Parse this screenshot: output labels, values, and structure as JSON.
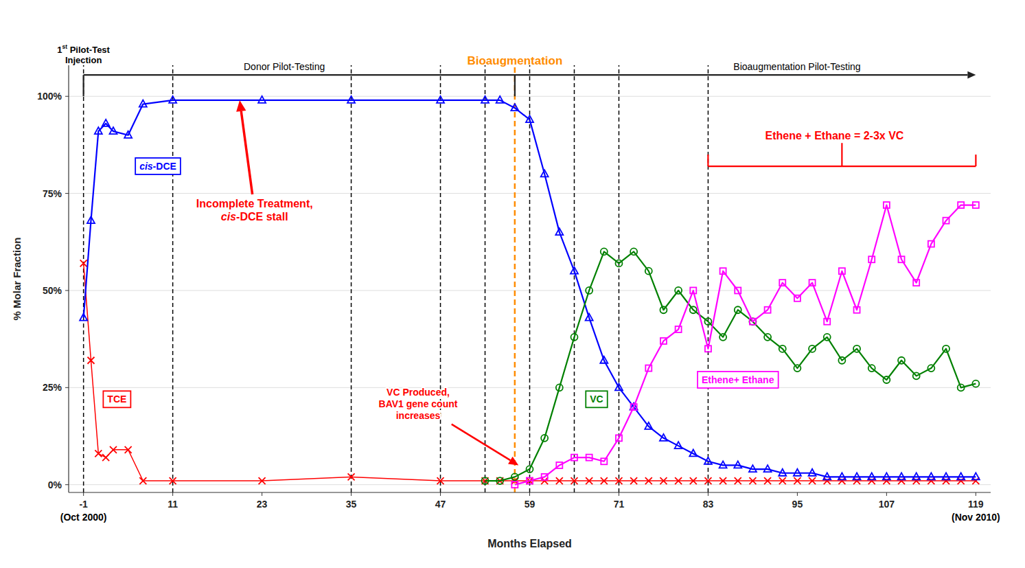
{
  "chart_data": {
    "type": "line",
    "xlabel": "Months Elapsed",
    "ylabel": "% Molar Fraction",
    "xlim": [
      -3,
      121
    ],
    "ylim": [
      -0.02,
      1.08
    ],
    "xticks": [
      -1,
      11,
      23,
      35,
      47,
      59,
      71,
      83,
      95,
      107,
      119
    ],
    "yticks": [
      {
        "value": 0,
        "label": "0%"
      },
      {
        "value": 0.25,
        "label": "25%"
      },
      {
        "value": 0.5,
        "label": "50%"
      },
      {
        "value": 0.75,
        "label": "75%"
      },
      {
        "value": 1,
        "label": "100%"
      }
    ],
    "grid": true,
    "series": [
      {
        "name": "TCE",
        "color": "#FF0000",
        "marker": "x",
        "x": [
          -1,
          0,
          1,
          2,
          3,
          5,
          7,
          11,
          23,
          35,
          47,
          53,
          55,
          57,
          59,
          61,
          63,
          65,
          67,
          69,
          71,
          73,
          75,
          77,
          79,
          81,
          83,
          85,
          87,
          89,
          91,
          93,
          95,
          97,
          99,
          101,
          103,
          105,
          107,
          109,
          111,
          113,
          115,
          117,
          119
        ],
        "values": [
          0.57,
          0.32,
          0.08,
          0.07,
          0.09,
          0.09,
          0.01,
          0.01,
          0.01,
          0.02,
          0.01,
          0.01,
          0.01,
          0.01,
          0.01,
          0.01,
          0.01,
          0.01,
          0.01,
          0.01,
          0.01,
          0.01,
          0.01,
          0.01,
          0.01,
          0.01,
          0.01,
          0.01,
          0.01,
          0.01,
          0.01,
          0.01,
          0.01,
          0.01,
          0.01,
          0.01,
          0.01,
          0.01,
          0.01,
          0.01,
          0.01,
          0.01,
          0.01,
          0.01,
          0.01
        ]
      },
      {
        "name": "cis-DCE",
        "color": "#0000FF",
        "marker": "triangle",
        "x": [
          -1,
          0,
          1,
          2,
          3,
          5,
          7,
          11,
          23,
          35,
          47,
          53,
          55,
          57,
          59,
          61,
          63,
          65,
          67,
          69,
          71,
          73,
          75,
          77,
          79,
          81,
          83,
          85,
          87,
          89,
          91,
          93,
          95,
          97,
          99,
          101,
          103,
          105,
          107,
          109,
          111,
          113,
          115,
          117,
          119
        ],
        "values": [
          0.43,
          0.68,
          0.91,
          0.93,
          0.91,
          0.9,
          0.98,
          0.99,
          0.99,
          0.99,
          0.99,
          0.99,
          0.99,
          0.97,
          0.94,
          0.8,
          0.65,
          0.55,
          0.43,
          0.32,
          0.25,
          0.2,
          0.15,
          0.12,
          0.1,
          0.08,
          0.06,
          0.05,
          0.05,
          0.04,
          0.04,
          0.03,
          0.03,
          0.03,
          0.02,
          0.02,
          0.02,
          0.02,
          0.02,
          0.02,
          0.02,
          0.02,
          0.02,
          0.02,
          0.02
        ]
      },
      {
        "name": "VC",
        "color": "#008000",
        "marker": "circle",
        "x": [
          53,
          55,
          57,
          59,
          61,
          63,
          65,
          67,
          69,
          71,
          73,
          75,
          77,
          79,
          81,
          83,
          85,
          87,
          89,
          91,
          93,
          95,
          97,
          99,
          101,
          103,
          105,
          107,
          109,
          111,
          113,
          115,
          117,
          119
        ],
        "values": [
          0.01,
          0.01,
          0.02,
          0.04,
          0.12,
          0.25,
          0.38,
          0.5,
          0.6,
          0.57,
          0.6,
          0.55,
          0.45,
          0.5,
          0.45,
          0.42,
          0.38,
          0.45,
          0.42,
          0.38,
          0.35,
          0.3,
          0.35,
          0.38,
          0.32,
          0.35,
          0.3,
          0.27,
          0.32,
          0.28,
          0.3,
          0.35,
          0.25,
          0.26
        ]
      },
      {
        "name": "Ethene+ Ethane",
        "color": "#FF00FF",
        "marker": "square",
        "x": [
          57,
          59,
          61,
          63,
          65,
          67,
          69,
          71,
          73,
          75,
          77,
          79,
          81,
          83,
          85,
          87,
          89,
          91,
          93,
          95,
          97,
          99,
          101,
          103,
          105,
          107,
          109,
          111,
          113,
          115,
          117,
          119
        ],
        "values": [
          0.0,
          0.01,
          0.02,
          0.05,
          0.07,
          0.07,
          0.06,
          0.12,
          0.2,
          0.3,
          0.37,
          0.4,
          0.5,
          0.35,
          0.55,
          0.5,
          0.42,
          0.45,
          0.52,
          0.48,
          0.52,
          0.42,
          0.55,
          0.45,
          0.58,
          0.72,
          0.58,
          0.52,
          0.62,
          0.68,
          0.72,
          0.72
        ]
      }
    ],
    "vlines": {
      "x": [
        -1,
        11,
        35,
        47,
        53,
        59,
        65,
        71,
        83
      ],
      "color": "black"
    },
    "highlight_vline": {
      "x": 57,
      "color": "#FF8C00"
    },
    "annotations": [
      {
        "text": "1st Pilot-Test\nInjection",
        "color": "black"
      },
      {
        "text": "Donor Pilot-Testing",
        "color": "black"
      },
      {
        "text": "Bioaugmentation",
        "color": "#FF8C00"
      },
      {
        "text": "Bioaugmentation Pilot-Testing",
        "color": "black"
      },
      {
        "text": "Incomplete Treatment,\ncis-DCE stall",
        "color": "red"
      },
      {
        "text": "VC Produced,\nBAV1 gene count\nincreases",
        "color": "red"
      },
      {
        "text": "Ethene + Ethane = 2-3x VC",
        "color": "red"
      },
      {
        "text": "(Oct 2000)",
        "color": "black"
      },
      {
        "text": "(Nov 2010)",
        "color": "black"
      }
    ]
  }
}
